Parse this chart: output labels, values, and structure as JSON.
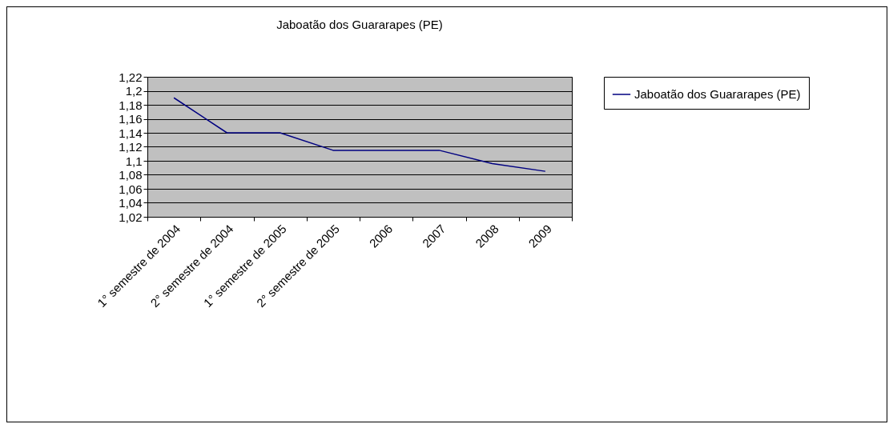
{
  "chart_data": {
    "type": "line",
    "title": "Jaboatão dos Guararapes (PE)",
    "categories": [
      "1° semestre de 2004",
      "2° semestre de 2004",
      "1° semestre de 2005",
      "2° semestre de 2005",
      "2006",
      "2007",
      "2008",
      "2009"
    ],
    "series": [
      {
        "name": "Jaboatão dos Guararapes (PE)",
        "color": "#000080",
        "values": [
          1.19,
          1.14,
          1.14,
          1.115,
          1.115,
          1.115,
          1.096,
          1.085
        ]
      }
    ],
    "ylim": [
      1.02,
      1.22
    ],
    "yticks": [
      {
        "value": 1.02,
        "label": "1,02"
      },
      {
        "value": 1.04,
        "label": "1,04"
      },
      {
        "value": 1.06,
        "label": "1,06"
      },
      {
        "value": 1.08,
        "label": "1,08"
      },
      {
        "value": 1.1,
        "label": "1,1"
      },
      {
        "value": 1.12,
        "label": "1,12"
      },
      {
        "value": 1.14,
        "label": "1,14"
      },
      {
        "value": 1.16,
        "label": "1,16"
      },
      {
        "value": 1.18,
        "label": "1,18"
      },
      {
        "value": 1.2,
        "label": "1,2"
      },
      {
        "value": 1.22,
        "label": "1,22"
      }
    ],
    "grid": "y",
    "legend": "right"
  }
}
